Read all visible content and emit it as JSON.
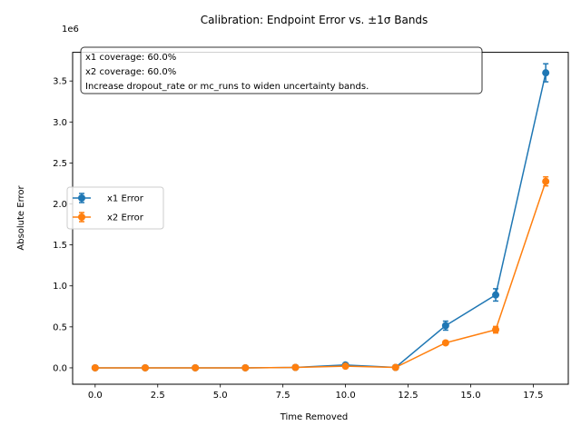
{
  "chart_data": {
    "type": "line",
    "title": "Calibration: Endpoint Error vs. ±1σ Bands",
    "xlabel": "Time Removed",
    "ylabel": "Absolute Error",
    "y_offset_label": "1e6",
    "xlim": [
      -0.9,
      18.9
    ],
    "ylim": [
      -200000,
      3850000
    ],
    "x_ticks": [
      0,
      2.5,
      5,
      7.5,
      10,
      12.5,
      15,
      17.5
    ],
    "x_tick_labels": [
      "0.0",
      "2.5",
      "5.0",
      "7.5",
      "10.0",
      "12.5",
      "15.0",
      "17.5"
    ],
    "y_ticks": [
      0,
      500000,
      1000000,
      1500000,
      2000000,
      2500000,
      3000000,
      3500000
    ],
    "y_tick_labels": [
      "0.0",
      "0.5",
      "1.0",
      "1.5",
      "2.0",
      "2.5",
      "3.0",
      "3.5"
    ],
    "grid": false,
    "legend_position": "center-left",
    "x": [
      0,
      2,
      4,
      6,
      8,
      10,
      12,
      14,
      16,
      18
    ],
    "series": [
      {
        "name": "x1 Error",
        "color": "#1f77b4",
        "values": [
          0,
          0,
          0,
          0,
          5000,
          35000,
          5000,
          515000,
          890000,
          3600000
        ],
        "err": [
          0,
          0,
          0,
          0,
          3000,
          10000,
          3000,
          55000,
          75000,
          110000
        ]
      },
      {
        "name": "x2 Error",
        "color": "#ff7f0e",
        "values": [
          0,
          0,
          0,
          0,
          5000,
          20000,
          5000,
          305000,
          465000,
          2275000
        ],
        "err": [
          0,
          0,
          0,
          0,
          3000,
          8000,
          3000,
          20000,
          40000,
          55000
        ]
      }
    ],
    "annotation": [
      "x1 coverage: 60.0%",
      "x2 coverage: 60.0%",
      "Increase dropout_rate or mc_runs to widen uncertainty bands."
    ]
  }
}
